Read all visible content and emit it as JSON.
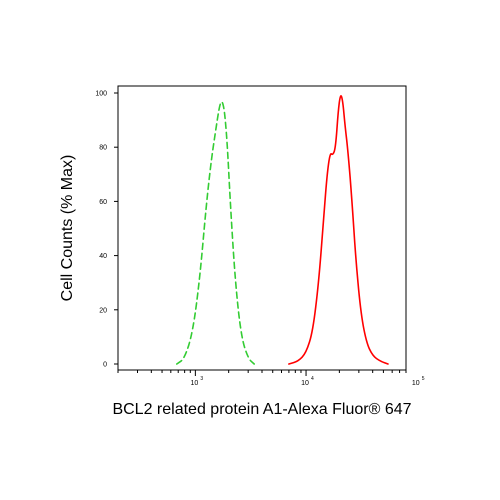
{
  "chart_data": {
    "type": "line",
    "title": "",
    "xlabel": "BCL2 related protein A1-Alexa Fluor® 647",
    "ylabel": "Cell Counts (% Max)",
    "xscale": "log",
    "xlim": [
      200,
      80000
    ],
    "ylim": [
      0,
      100
    ],
    "yticks": [
      "0",
      "20",
      "40",
      "60",
      "80",
      "100"
    ],
    "xticks": [
      {
        "value": 1000,
        "base": "10",
        "exp": "3"
      },
      {
        "value": 10000,
        "base": "10",
        "exp": "4"
      },
      {
        "value": 100000,
        "base": "10",
        "exp": "5"
      }
    ],
    "grid": false,
    "legend": "none",
    "series": [
      {
        "color": "#33cc33",
        "style": "dashed",
        "x": [
          680,
          800,
          950,
          1100,
          1250,
          1400,
          1550,
          1650,
          1720,
          1780,
          1850,
          1950,
          2100,
          2300,
          2600,
          3000,
          3400
        ],
        "y": [
          0,
          2,
          12,
          32,
          58,
          76,
          88,
          95,
          97,
          96,
          92,
          80,
          55,
          30,
          10,
          2,
          0
        ]
      },
      {
        "color": "#ff0000",
        "style": "solid",
        "x": [
          7000,
          8500,
          10000,
          11500,
          13000,
          14500,
          15500,
          16500,
          17500,
          18500,
          19500,
          20500,
          21500,
          22500,
          24000,
          26000,
          28000,
          31000,
          35000,
          40000,
          47000,
          55000
        ],
        "y": [
          0,
          1,
          4,
          12,
          30,
          55,
          70,
          78,
          77,
          80,
          93,
          100,
          97,
          88,
          78,
          60,
          40,
          20,
          8,
          3,
          1,
          0
        ]
      }
    ]
  }
}
